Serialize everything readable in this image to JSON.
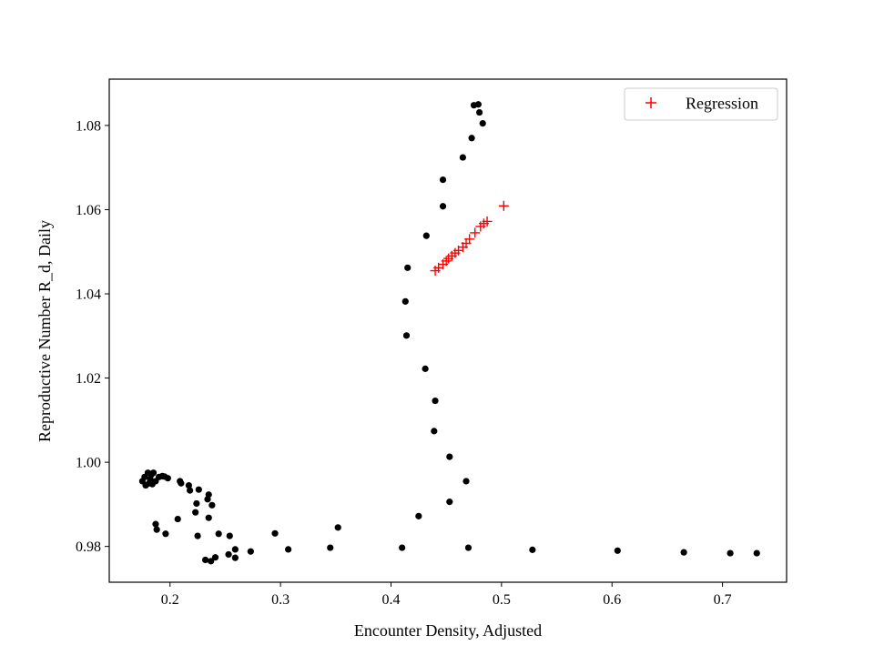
{
  "chart_data": {
    "type": "scatter",
    "title": "",
    "xlabel": "Encounter Density, Adjusted",
    "ylabel": "Reproductive Number R_d, Daily",
    "xlim": [
      0.145,
      0.758
    ],
    "ylim": [
      0.9715,
      1.091
    ],
    "x_ticks": [
      0.2,
      0.3,
      0.4,
      0.5,
      0.6,
      0.7
    ],
    "x_tick_labels": [
      "0.2",
      "0.3",
      "0.4",
      "0.5",
      "0.6",
      "0.7"
    ],
    "y_ticks": [
      0.98,
      1.0,
      1.02,
      1.04,
      1.06,
      1.08
    ],
    "y_tick_labels": [
      "0.98",
      "1.00",
      "1.02",
      "1.04",
      "1.06",
      "1.08"
    ],
    "grid": false,
    "legend": {
      "position": "top-right",
      "entries": [
        "Regression"
      ]
    },
    "colors": {
      "data": "#000000",
      "regression": "#ff0000",
      "axes": "#000000",
      "background": "#ffffff"
    },
    "series": [
      {
        "marker": "circle",
        "color": "#000000",
        "points": [
          [
            0.175,
            0.9955
          ],
          [
            0.177,
            0.9965
          ],
          [
            0.178,
            0.9945
          ],
          [
            0.18,
            0.9975
          ],
          [
            0.181,
            0.995
          ],
          [
            0.182,
            0.996
          ],
          [
            0.183,
            0.997
          ],
          [
            0.184,
            0.9948
          ],
          [
            0.185,
            0.9975
          ],
          [
            0.187,
            0.9955
          ],
          [
            0.19,
            0.9965
          ],
          [
            0.193,
            0.9967
          ],
          [
            0.195,
            0.9966
          ],
          [
            0.198,
            0.9962
          ],
          [
            0.209,
            0.9955
          ],
          [
            0.21,
            0.995
          ],
          [
            0.217,
            0.9945
          ],
          [
            0.218,
            0.9933
          ],
          [
            0.226,
            0.9935
          ],
          [
            0.235,
            0.9923
          ],
          [
            0.234,
            0.9912
          ],
          [
            0.224,
            0.9902
          ],
          [
            0.238,
            0.9898
          ],
          [
            0.223,
            0.9881
          ],
          [
            0.235,
            0.9868
          ],
          [
            0.207,
            0.9865
          ],
          [
            0.187,
            0.9853
          ],
          [
            0.188,
            0.984
          ],
          [
            0.196,
            0.983
          ],
          [
            0.225,
            0.9825
          ],
          [
            0.244,
            0.983
          ],
          [
            0.254,
            0.9825
          ],
          [
            0.259,
            0.9793
          ],
          [
            0.273,
            0.9788
          ],
          [
            0.253,
            0.9781
          ],
          [
            0.259,
            0.9773
          ],
          [
            0.241,
            0.9774
          ],
          [
            0.237,
            0.9765
          ],
          [
            0.232,
            0.9768
          ],
          [
            0.295,
            0.9831
          ],
          [
            0.307,
            0.9793
          ],
          [
            0.345,
            0.9797
          ],
          [
            0.352,
            0.9845
          ],
          [
            0.41,
            0.9797
          ],
          [
            0.425,
            0.9872
          ],
          [
            0.453,
            0.9906
          ],
          [
            0.47,
            0.9797
          ],
          [
            0.468,
            0.9955
          ],
          [
            0.453,
            1.0013
          ],
          [
            0.439,
            1.0074
          ],
          [
            0.44,
            1.0146
          ],
          [
            0.431,
            1.0222
          ],
          [
            0.414,
            1.0301
          ],
          [
            0.413,
            1.0382
          ],
          [
            0.415,
            1.0462
          ],
          [
            0.432,
            1.0538
          ],
          [
            0.447,
            1.0608
          ],
          [
            0.447,
            1.0671
          ],
          [
            0.465,
            1.0724
          ],
          [
            0.473,
            1.077
          ],
          [
            0.483,
            1.0805
          ],
          [
            0.48,
            1.0831
          ],
          [
            0.475,
            1.0848
          ],
          [
            0.479,
            1.085
          ],
          [
            0.528,
            0.9792
          ],
          [
            0.605,
            0.979
          ],
          [
            0.665,
            0.9786
          ],
          [
            0.707,
            0.9784
          ],
          [
            0.731,
            0.9784
          ]
        ]
      },
      {
        "name": "Regression",
        "marker": "plus",
        "color": "#ff0000",
        "points": [
          [
            0.44,
            1.0455
          ],
          [
            0.443,
            1.0462
          ],
          [
            0.447,
            1.047
          ],
          [
            0.45,
            1.0478
          ],
          [
            0.452,
            1.0484
          ],
          [
            0.455,
            1.049
          ],
          [
            0.458,
            1.0497
          ],
          [
            0.461,
            1.0503
          ],
          [
            0.465,
            1.0511
          ],
          [
            0.468,
            1.052
          ],
          [
            0.471,
            1.053
          ],
          [
            0.476,
            1.0545
          ],
          [
            0.481,
            1.056
          ],
          [
            0.484,
            1.0567
          ],
          [
            0.487,
            1.0572
          ],
          [
            0.502,
            1.0609
          ]
        ]
      }
    ]
  }
}
